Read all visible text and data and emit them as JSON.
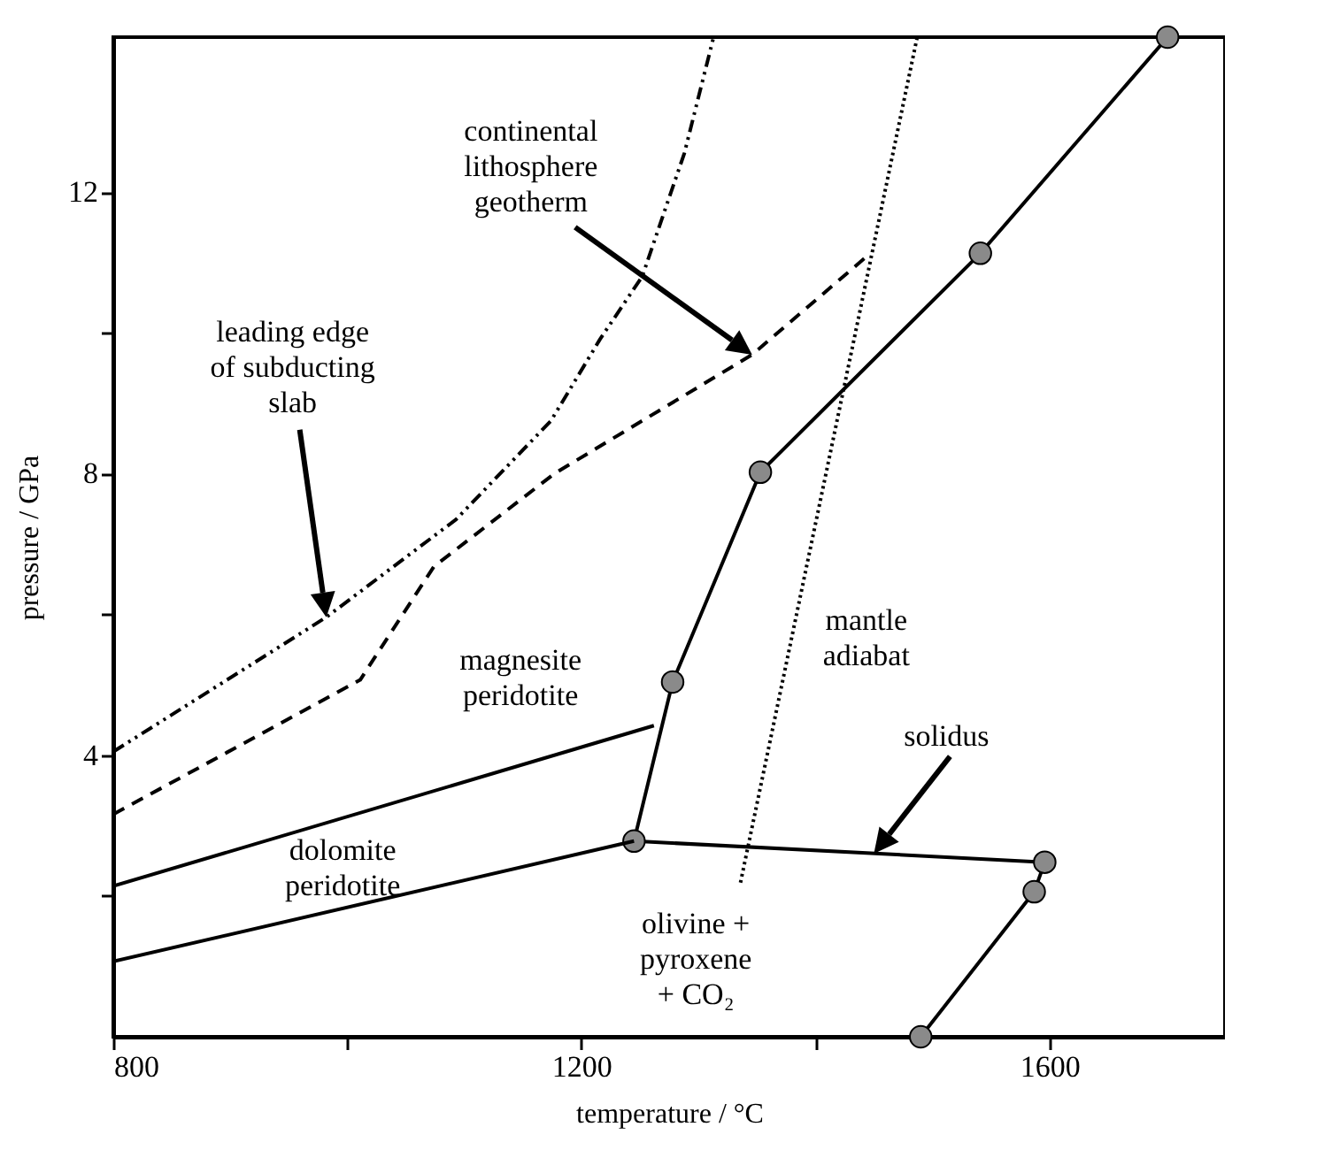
{
  "chart_data": {
    "type": "line",
    "xlabel": "temperature / °C",
    "ylabel": "pressure / GPa",
    "xlim": [
      800,
      1750
    ],
    "ylim": [
      0,
      14.2
    ],
    "xticks": [
      800,
      {
        "value": 1000,
        "label": null
      },
      1200,
      {
        "value": 1400,
        "label": null
      },
      1600
    ],
    "yticks": [
      {
        "value": 2,
        "label": null
      },
      4,
      {
        "value": 6,
        "label": null
      },
      8,
      {
        "value": 10,
        "label": null
      },
      12
    ],
    "series": [
      {
        "color": "#000000",
        "marker": "circle",
        "line_style": "solid",
        "x": [
          1490,
          1587,
          1596,
          1245,
          1278,
          1353,
          1541,
          1701
        ],
        "values": [
          0,
          2.06,
          2.48,
          2.78,
          5.04,
          8.02,
          11.13,
          14.2
        ]
      },
      {
        "color": "#000000",
        "marker": "none",
        "line_style": "solid",
        "x": [
          800,
          1245
        ],
        "values": [
          1.07,
          2.78
        ]
      },
      {
        "color": "#000000",
        "marker": "none",
        "line_style": "solid",
        "x": [
          800,
          1262
        ],
        "values": [
          2.14,
          4.42
        ]
      },
      {
        "color": "#000000",
        "marker": "none",
        "line_style": "dashed",
        "x": [
          800,
          1011,
          1074,
          1177,
          1346,
          1447
        ],
        "values": [
          3.16,
          5.07,
          6.68,
          8.0,
          9.69,
          11.13
        ]
      },
      {
        "color": "#000000",
        "marker": "none",
        "line_style": "dashdot",
        "x": [
          800,
          982,
          1093,
          1174,
          1216,
          1252,
          1288,
          1313
        ],
        "values": [
          4.05,
          5.96,
          7.35,
          8.75,
          9.91,
          10.8,
          12.55,
          14.2
        ]
      },
      {
        "color": "#000000",
        "marker": "none",
        "line_style": "dotted",
        "x": [
          1336,
          1487
        ],
        "values": [
          2.19,
          14.2
        ]
      }
    ],
    "annotations": [
      "continental\nlithosphere\ngeotherm",
      "leading edge\nof subducting\nslab",
      {
        "text": "magnesite\nperidotite",
        "x": 1148,
        "y": 3.86
      },
      {
        "text": "dolomite\nperidotite",
        "x": 996,
        "y": 1.83
      },
      "solidus",
      {
        "text": "mantle\nadiabat",
        "x": 1380,
        "y": 5.66
      },
      "olivine +\npyroxene\n+ CO₂"
    ]
  }
}
